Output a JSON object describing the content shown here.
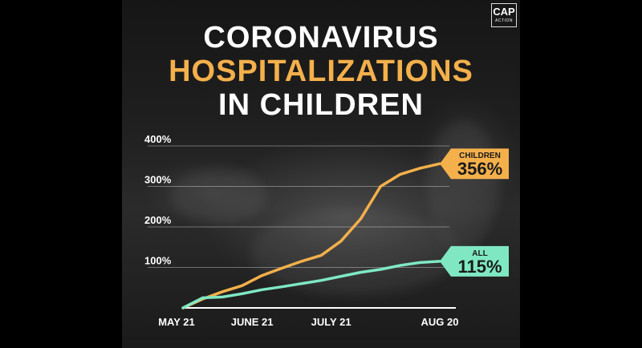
{
  "header": {
    "title_line_1": "CORONAVIRUS",
    "title_line_2": "HOSPITALIZATIONS",
    "title_line_3": "IN CHILDREN",
    "accent_color": "#f4b04b",
    "title_color": "#ffffff"
  },
  "logo": {
    "main": "CAP",
    "sub": "ACTION"
  },
  "chart_data": {
    "type": "line",
    "title": "CORONAVIRUS HOSPITALIZATIONS IN CHILDREN",
    "xlabel": "",
    "ylabel": "",
    "x_ticks": [
      "MAY 21",
      "JUNE 21",
      "JULY 21",
      "AUG 20"
    ],
    "y_ticks": [
      "100%",
      "200%",
      "300%",
      "400%"
    ],
    "ylim": [
      0,
      400
    ],
    "grid": true,
    "x": [
      "May 21",
      "May 28",
      "Jun 4",
      "Jun 11",
      "Jun 18",
      "Jun 25",
      "Jul 2",
      "Jul 9",
      "Jul 16",
      "Jul 23",
      "Jul 30",
      "Aug 6",
      "Aug 13",
      "Aug 20"
    ],
    "series": [
      {
        "name": "CHILDREN",
        "color": "#f4b04b",
        "end_label": "356%",
        "values": [
          0,
          22,
          40,
          55,
          80,
          98,
          115,
          130,
          165,
          220,
          300,
          330,
          345,
          356
        ]
      },
      {
        "name": "ALL",
        "color": "#7fe8c3",
        "end_label": "115%",
        "values": [
          0,
          25,
          27,
          35,
          45,
          52,
          60,
          68,
          78,
          88,
          95,
          105,
          112,
          115
        ]
      }
    ]
  }
}
